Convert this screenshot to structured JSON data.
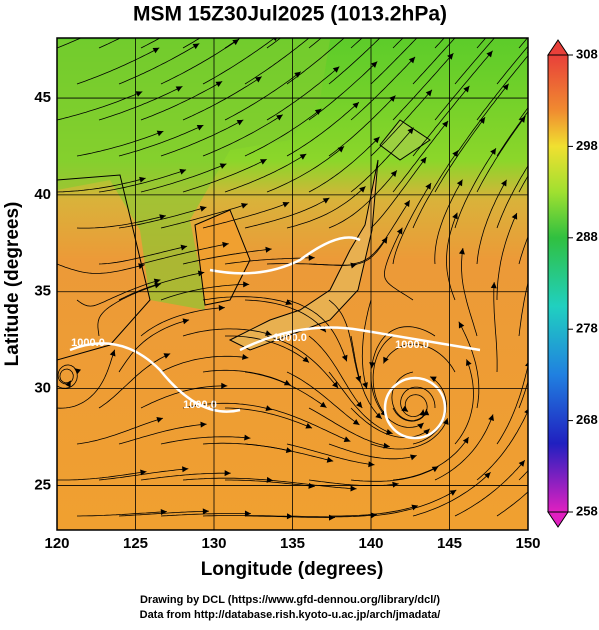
{
  "chart_data": {
    "type": "map",
    "title": "MSM 15Z30Jul2025 (1013.2hPa)",
    "x_label": "Longitude (degrees)",
    "y_label": "Latitude  (degrees)",
    "xlim": [
      120,
      150
    ],
    "xticks": [
      120,
      125,
      130,
      135,
      140,
      145,
      150
    ],
    "ylim": [
      22.7,
      48.1
    ],
    "yticks": [
      25,
      30,
      35,
      40,
      45
    ],
    "colorbar": {
      "lim": [
        258,
        308
      ],
      "ticks": [
        258,
        268,
        278,
        288,
        298,
        308
      ]
    },
    "contour_labels": [
      "1000.0",
      "1000.0",
      "1000.0",
      "1000.0"
    ]
  },
  "footer": {
    "line1": "Drawing by DCL (https://www.gfd-dennou.org/library/dcl/)",
    "line2": "Data from http://database.rish.kyoto-u.ac.jp/arch/jmadata/"
  }
}
